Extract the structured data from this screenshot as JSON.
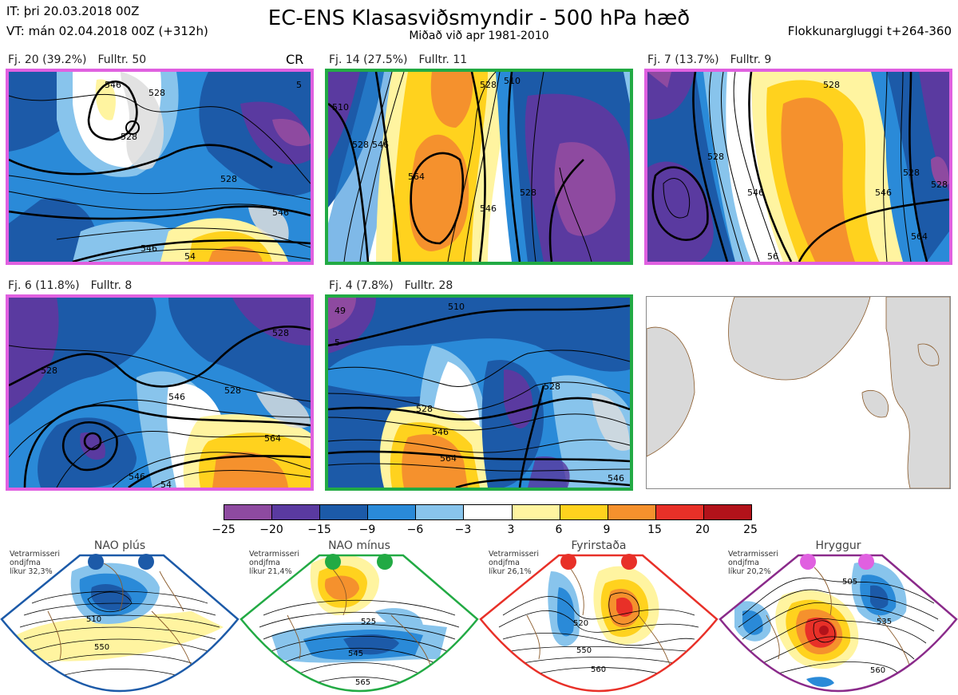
{
  "header": {
    "it_line": "IT: þri 20.03.2018 00Z",
    "vt_line": "VT: mán 02.04.2018 00Z  (+312h)",
    "title": "EC-ENS Klasasviðsmyndir - 500 hPa hæð",
    "subtitle": "Miðað við apr 1981-2010",
    "window": "Flokkunargluggi t+264-360"
  },
  "panels": [
    {
      "fj": "Fj. 20 (39.2%)",
      "fulltr": "Fulltr. 50",
      "tag": "CR",
      "border": "#e060e0"
    },
    {
      "fj": "Fj. 14 (27.5%)",
      "fulltr": "Fulltr. 11",
      "tag": "",
      "border": "#22aa44"
    },
    {
      "fj": "Fj. 7 (13.7%)",
      "fulltr": "Fulltr. 9",
      "tag": "",
      "border": "#e060e0"
    },
    {
      "fj": "Fj. 6 (11.8%)",
      "fulltr": "Fulltr. 8",
      "tag": "",
      "border": "#e060e0"
    },
    {
      "fj": "Fj. 4 (7.8%)",
      "fulltr": "Fulltr. 28",
      "tag": "",
      "border": "#22aa44"
    }
  ],
  "contour_labels": {
    "p1": [
      "546",
      "528",
      "546",
      "54",
      "528",
      "5",
      "528",
      "546"
    ],
    "p2": [
      "510",
      "528",
      "528",
      "546",
      "564",
      "546",
      "528",
      "510"
    ],
    "p3": [
      "528",
      "528",
      "546",
      "546",
      "564",
      "528",
      "56",
      "528"
    ],
    "p4": [
      "528",
      "528",
      "546",
      "564",
      "546",
      "54",
      "528"
    ],
    "p5": [
      "510",
      "528",
      "546",
      "564",
      "528",
      "546",
      "49",
      "5"
    ]
  },
  "colorbar": {
    "ticks": [
      "−25",
      "−20",
      "−15",
      "−9",
      "−6",
      "−3",
      "3",
      "6",
      "9",
      "15",
      "20",
      "25"
    ],
    "colors": [
      "#8e4aa0",
      "#5a3aa0",
      "#1c5aa8",
      "#2a8ad8",
      "#88c4ec",
      "#ffffff",
      "#fff4a0",
      "#ffd21e",
      "#f5912d",
      "#e83028",
      "#b2121a"
    ]
  },
  "regimes": [
    {
      "name": "NAO plús",
      "note": [
        "Vetrarmisseri",
        "ondjfma",
        "líkur 32,3%"
      ],
      "color": "#1c5aa8",
      "labels": [
        "510",
        "550"
      ]
    },
    {
      "name": "NAO mínus",
      "note": [
        "Vetrarmisseri",
        "ondjfma",
        "líkur 21,4%"
      ],
      "color": "#22aa44",
      "labels": [
        "525",
        "545",
        "565"
      ]
    },
    {
      "name": "Fyrirstaða",
      "note": [
        "Vetrarmisseri",
        "ondjfma",
        "líkur 26,1%"
      ],
      "color": "#e83028",
      "labels": [
        "520",
        "550",
        "560"
      ]
    },
    {
      "name": "Hryggur",
      "note": [
        "Vetrarmisseri",
        "ondjfma",
        "líkur 20,2%"
      ],
      "color": "#e060e0",
      "labels": [
        "505",
        "535",
        "560"
      ]
    }
  ]
}
